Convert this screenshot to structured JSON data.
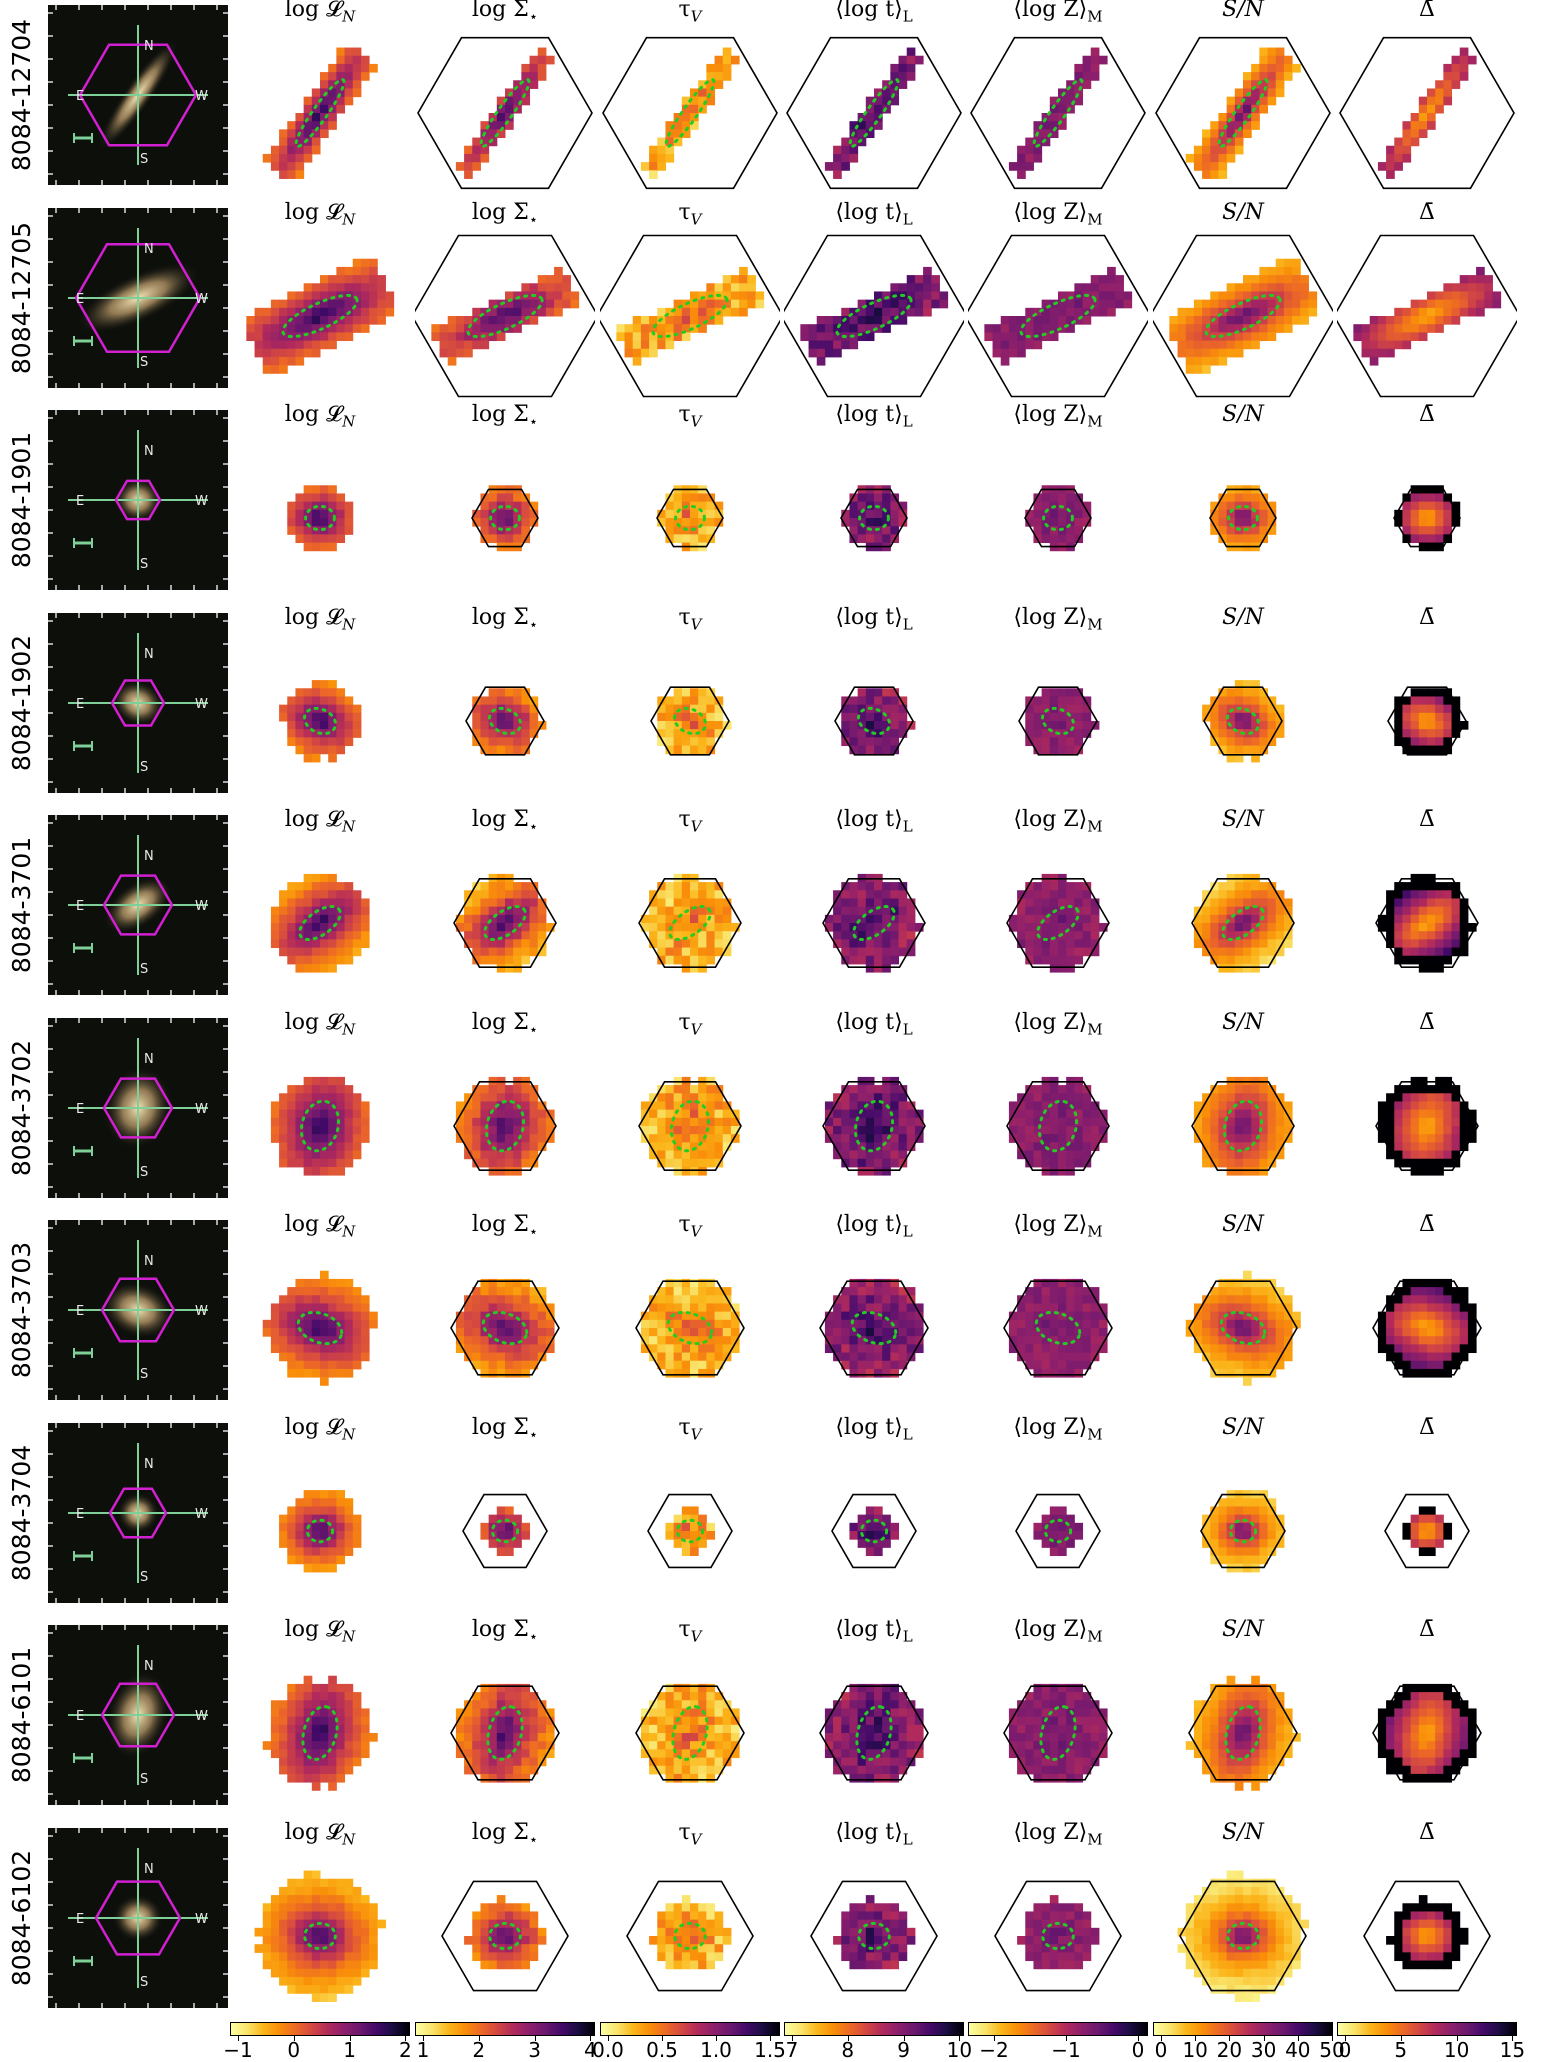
{
  "figure": {
    "columns": [
      {
        "key": "logLN",
        "title": "log 𝓛",
        "sub": "N",
        "subtype": "italic",
        "cmap": "inferno_r"
      },
      {
        "key": "logSig",
        "title": "log Σ",
        "sub": "⋆",
        "subtype": "plain",
        "cmap": "inferno_r"
      },
      {
        "key": "tauV",
        "title": "τ",
        "sub": "V",
        "subtype": "italic",
        "cmap": "inferno_r"
      },
      {
        "key": "logt",
        "title": "⟨log t⟩",
        "sub": "L",
        "subtype": "plain",
        "cmap": "inferno_r"
      },
      {
        "key": "logZ",
        "title": "⟨log Z⟩",
        "sub": "M",
        "subtype": "plain",
        "cmap": "inferno_r"
      },
      {
        "key": "sn",
        "title": "S/N",
        "sub": "",
        "subtype": "plain",
        "cmap": "inferno_r"
      },
      {
        "key": "delta",
        "title": "Δ̄",
        "sub": "",
        "subtype": "plain",
        "cmap": "inferno_r"
      }
    ],
    "colorbars": [
      {
        "ticks": [
          "−1",
          "0",
          "1",
          "2"
        ],
        "positions": [
          0.0,
          0.31,
          0.62,
          0.93
        ]
      },
      {
        "ticks": [
          "1",
          "2",
          "3",
          "4"
        ],
        "positions": [
          0.0,
          0.31,
          0.62,
          0.93
        ]
      },
      {
        "ticks": [
          "0.0",
          "0.5",
          "1.0",
          "1.5"
        ],
        "positions": [
          0.0,
          0.3,
          0.6,
          0.9
        ]
      },
      {
        "ticks": [
          "7",
          "8",
          "9",
          "10"
        ],
        "positions": [
          0.0,
          0.31,
          0.62,
          0.93
        ]
      },
      {
        "ticks": [
          "−2",
          "−1",
          "0"
        ],
        "positions": [
          0.1,
          0.5,
          0.9
        ]
      },
      {
        "ticks": [
          "0",
          "10",
          "20",
          "30",
          "40",
          "50"
        ],
        "positions": [
          0.0,
          0.19,
          0.38,
          0.57,
          0.76,
          0.95
        ]
      },
      {
        "ticks": [
          "0",
          "5",
          "10",
          "15"
        ],
        "positions": [
          0.0,
          0.31,
          0.62,
          0.93
        ]
      }
    ],
    "galaxies": [
      {
        "id": "8084-12704",
        "angle": -55,
        "ell_a": 0.45,
        "ell_b": 0.08,
        "hex": 0.58,
        "size": 0.62,
        "shape": "thin",
        "partial": true
      },
      {
        "id": "8084-12705",
        "angle": -25,
        "ell_a": 0.45,
        "ell_b": 0.14,
        "hex": 0.62,
        "size": 0.95,
        "shape": "thin",
        "partial": false
      },
      {
        "id": "8084-1901",
        "angle": 0,
        "ell_a": 0.16,
        "ell_b": 0.13,
        "hex": 0.22,
        "size": 0.95,
        "shape": "round",
        "partial": false
      },
      {
        "id": "8084-1902",
        "angle": 25,
        "ell_a": 0.18,
        "ell_b": 0.13,
        "hex": 0.26,
        "size": 0.95,
        "shape": "round",
        "partial": false
      },
      {
        "id": "8084-3701",
        "angle": -35,
        "ell_a": 0.26,
        "ell_b": 0.13,
        "hex": 0.34,
        "size": 0.95,
        "shape": "round",
        "partial": false
      },
      {
        "id": "8084-3702",
        "angle": -75,
        "ell_a": 0.28,
        "ell_b": 0.2,
        "hex": 0.34,
        "size": 0.95,
        "shape": "round",
        "partial": false
      },
      {
        "id": "8084-3703",
        "angle": 20,
        "ell_a": 0.25,
        "ell_b": 0.16,
        "hex": 0.36,
        "size": 0.95,
        "shape": "round",
        "partial": false
      },
      {
        "id": "8084-3704",
        "angle": 0,
        "ell_a": 0.14,
        "ell_b": 0.12,
        "hex": 0.28,
        "size": 0.55,
        "shape": "round",
        "partial": true
      },
      {
        "id": "8084-6101",
        "angle": -75,
        "ell_a": 0.3,
        "ell_b": 0.18,
        "hex": 0.36,
        "size": 0.95,
        "shape": "round",
        "partial": false
      },
      {
        "id": "8084-6102",
        "angle": 0,
        "ell_a": 0.17,
        "ell_b": 0.14,
        "hex": 0.42,
        "size": 0.6,
        "shape": "round",
        "partial": true
      }
    ],
    "compass": {
      "north": "N",
      "east": "E",
      "west": "W",
      "south": "S"
    }
  },
  "colors": {
    "hexagon": "#d020d0",
    "crosshair": "#7ecf98",
    "ellipse": "#22cc22",
    "outline": "#000000",
    "scalebar": "#7ecf98"
  }
}
